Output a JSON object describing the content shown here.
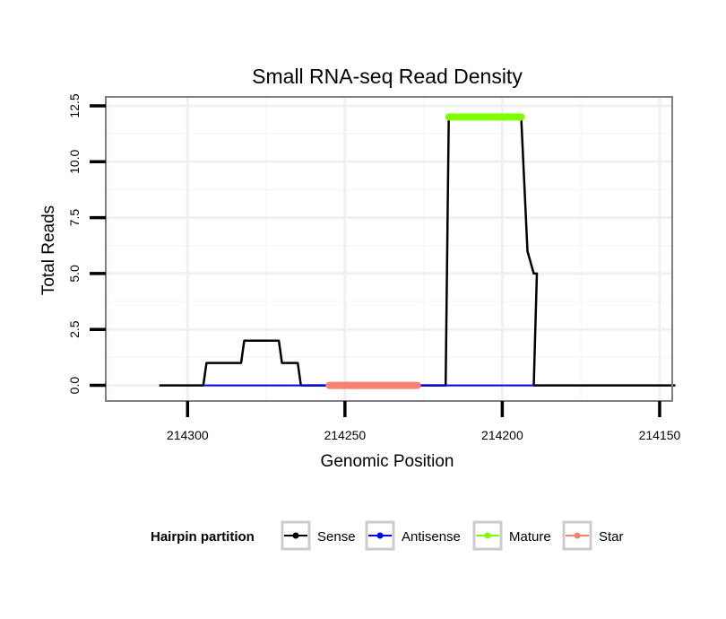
{
  "chart_data": {
    "type": "line",
    "title": "Small RNA-seq Read Density",
    "xlabel": "Genomic Position",
    "ylabel": "Total Reads",
    "x_reversed": true,
    "xlim": [
      214326,
      214146
    ],
    "ylim": [
      -0.7,
      12.9
    ],
    "x_ticks": [
      214300,
      214250,
      214200,
      214150
    ],
    "x_tick_labels": [
      "214300",
      "214250",
      "214200",
      "214150"
    ],
    "y_ticks": [
      0.0,
      2.5,
      5.0,
      7.5,
      10.0,
      12.5
    ],
    "y_tick_labels": [
      "0.0",
      "2.5",
      "5.0",
      "7.5",
      "10.0",
      "12.5"
    ],
    "grid": true,
    "legend_position": "bottom",
    "legend": {
      "title": "Hairpin partition",
      "entries": [
        "Sense",
        "Antisense",
        "Mature",
        "Star"
      ]
    },
    "series": [
      {
        "name": "Sense",
        "color": "#000000",
        "x": [
          214309,
          214295,
          214294,
          214283,
          214282,
          214271,
          214270,
          214265,
          214264,
          214255,
          214254,
          214218,
          214217,
          214194,
          214192,
          214190,
          214189,
          214190,
          214145
        ],
        "y": [
          0,
          0,
          1,
          1,
          2,
          2,
          1,
          1,
          0,
          0,
          0,
          0,
          12,
          12,
          6,
          5,
          5,
          0,
          0
        ]
      },
      {
        "name": "Antisense",
        "color": "#0000ff",
        "x": [
          214295,
          214265,
          214264,
          214218,
          214217,
          214190
        ],
        "y": [
          0,
          0,
          0,
          0,
          0,
          0
        ]
      },
      {
        "name": "Mature",
        "color": "#7fff00",
        "x": [
          214217,
          214194
        ],
        "y": [
          12,
          12
        ]
      },
      {
        "name": "Star",
        "color": "#fa8072",
        "x": [
          214255,
          214227
        ],
        "y": [
          0,
          0
        ]
      }
    ]
  }
}
